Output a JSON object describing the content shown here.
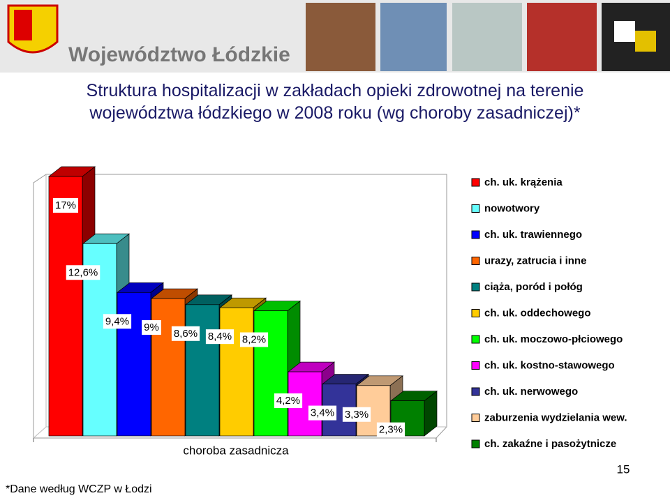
{
  "header": {
    "text": "Województwo Łódzkie"
  },
  "chart_data": {
    "type": "bar",
    "title": "Struktura hospitalizacji w zakładach opieki zdrowotnej na terenie województwa łódzkiego w 2008 roku (wg choroby zasadniczej)*",
    "categories": [
      "choroba zasadnicza"
    ],
    "ylim": [
      0,
      17
    ],
    "series": [
      {
        "name": "ch. uk. krążenia",
        "color": "#ff0000",
        "values": [
          17
        ],
        "value_labels": [
          "17%"
        ]
      },
      {
        "name": "nowotwory",
        "color": "#66ffff",
        "values": [
          12.6
        ],
        "value_labels": [
          "12,6%"
        ]
      },
      {
        "name": "ch. uk. trawiennego",
        "color": "#0000ff",
        "values": [
          9.4
        ],
        "value_labels": [
          "9,4%"
        ]
      },
      {
        "name": "urazy, zatrucia i inne",
        "color": "#ff6600",
        "values": [
          9
        ],
        "value_labels": [
          "9%"
        ]
      },
      {
        "name": "ciąża, poród i połóg",
        "color": "#008080",
        "values": [
          8.6
        ],
        "value_labels": [
          "8,6%"
        ]
      },
      {
        "name": "ch. uk. oddechowego",
        "color": "#ffcc00",
        "values": [
          8.4
        ],
        "value_labels": [
          "8,4%"
        ]
      },
      {
        "name": "ch. uk. moczowo-płciowego",
        "color": "#00ff00",
        "values": [
          8.2
        ],
        "value_labels": [
          "8,2%"
        ]
      },
      {
        "name": "ch. uk. kostno-stawowego",
        "color": "#ff00ff",
        "values": [
          4.2
        ],
        "value_labels": [
          "4,2%"
        ]
      },
      {
        "name": "ch. uk. nerwowego",
        "color": "#333399",
        "values": [
          3.4
        ],
        "value_labels": [
          "3,4%"
        ]
      },
      {
        "name": "zaburzenia wydzielania wew.",
        "color": "#ffcc99",
        "values": [
          3.3
        ],
        "value_labels": [
          "3,3%"
        ]
      },
      {
        "name": "ch. zakaźne i pasożytnicze",
        "color": "#008000",
        "values": [
          2.3
        ],
        "value_labels": [
          "2,3%"
        ]
      }
    ]
  },
  "footnote": "*Dane według WCZP w Łodzi",
  "page_number": "15"
}
